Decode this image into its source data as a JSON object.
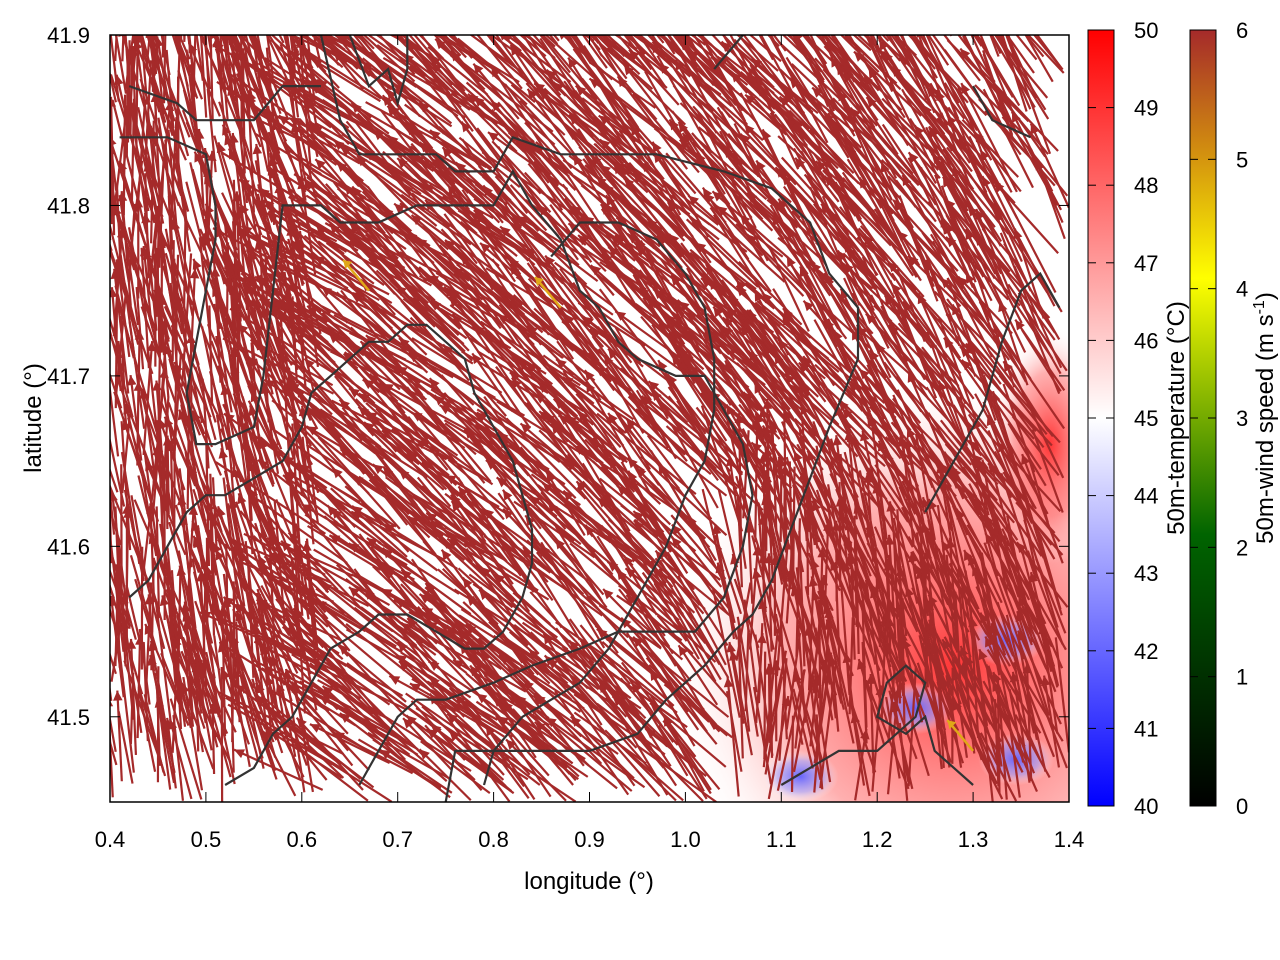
{
  "chart_data": {
    "type": "heatmap",
    "xlabel": "longitude (°)",
    "ylabel": "latitude (°)",
    "xlim": [
      0.4,
      1.4
    ],
    "ylim": [
      41.45,
      41.9
    ],
    "x_ticks": [
      "0.4",
      "0.5",
      "0.6",
      "0.7",
      "0.8",
      "0.9",
      "1.0",
      "1.1",
      "1.2",
      "1.3",
      "1.4"
    ],
    "x_tick_values": [
      0.4,
      0.5,
      0.6,
      0.7,
      0.8,
      0.9,
      1.0,
      1.1,
      1.2,
      1.3,
      1.4
    ],
    "y_ticks": [
      "41.5",
      "41.6",
      "41.7",
      "41.8",
      "41.9"
    ],
    "y_tick_values": [
      41.5,
      41.6,
      41.7,
      41.8,
      41.9
    ],
    "grid": false,
    "background_field": {
      "name": "50m-temperature",
      "colorbar_label": "50m-temperature (°C)",
      "range": [
        40,
        50
      ],
      "ticks": [
        "40",
        "41",
        "42",
        "43",
        "44",
        "45",
        "46",
        "47",
        "48",
        "49",
        "50"
      ],
      "colormap": [
        "#0000ff",
        "#ffffff",
        "#ff0000"
      ],
      "dominant_value": 45,
      "warm_region_lon": [
        1.0,
        1.4
      ],
      "warm_region_lat": [
        41.45,
        41.65
      ],
      "warm_values": [
        47,
        50
      ],
      "cool_patches": [
        {
          "lon": 1.24,
          "lat": 41.505,
          "value": 42.5
        },
        {
          "lon": 1.12,
          "lat": 41.465,
          "value": 43
        },
        {
          "lon": 1.345,
          "lat": 41.475,
          "value": 42
        },
        {
          "lon": 1.335,
          "lat": 41.545,
          "value": 43.5
        }
      ]
    },
    "vector_field": {
      "name": "50m-wind speed",
      "colorbar_label": "50m-wind speed (m s-1)",
      "range": [
        0,
        6
      ],
      "ticks": [
        "0",
        "1",
        "2",
        "3",
        "4",
        "5",
        "6"
      ],
      "colormap": [
        "#000000",
        "#006400",
        "#ffff00",
        "#a52a2a"
      ],
      "dominant_color": "#a52a2a",
      "dominant_speed": 6,
      "prevailing_direction": "northwest",
      "low_speed_arrows": [
        {
          "lon": 0.67,
          "lat": 41.75,
          "speed": 4.6
        },
        {
          "lon": 0.87,
          "lat": 41.74,
          "speed": 4.8
        },
        {
          "lon": 1.3,
          "lat": 41.48,
          "speed": 4.6
        }
      ]
    },
    "contours": {
      "color": "#333333",
      "lines": [
        [
          [
            0.42,
            41.87
          ],
          [
            0.47,
            41.86
          ],
          [
            0.49,
            41.85
          ],
          [
            0.53,
            41.85
          ],
          [
            0.55,
            41.85
          ],
          [
            0.58,
            41.87
          ],
          [
            0.62,
            41.87
          ]
        ],
        [
          [
            0.62,
            41.9
          ],
          [
            0.64,
            41.85
          ],
          [
            0.66,
            41.83
          ],
          [
            0.7,
            41.83
          ],
          [
            0.74,
            41.83
          ],
          [
            0.76,
            41.82
          ],
          [
            0.8,
            41.82
          ],
          [
            0.82,
            41.84
          ],
          [
            0.87,
            41.83
          ],
          [
            0.93,
            41.83
          ],
          [
            0.97,
            41.83
          ],
          [
            1.04,
            41.82
          ],
          [
            1.09,
            41.81
          ],
          [
            1.13,
            41.79
          ],
          [
            1.15,
            41.76
          ],
          [
            1.18,
            41.74
          ],
          [
            1.18,
            41.71
          ],
          [
            1.15,
            41.67
          ],
          [
            1.13,
            41.64
          ],
          [
            1.11,
            41.61
          ],
          [
            1.09,
            41.58
          ],
          [
            1.07,
            41.56
          ],
          [
            1.05,
            41.55
          ],
          [
            1.02,
            41.53
          ],
          [
            0.98,
            41.51
          ],
          [
            0.95,
            41.49
          ],
          [
            0.9,
            41.48
          ],
          [
            0.85,
            41.48
          ],
          [
            0.8,
            41.48
          ],
          [
            0.76,
            41.48
          ],
          [
            0.75,
            41.45
          ]
        ],
        [
          [
            0.65,
            41.9
          ],
          [
            0.67,
            41.87
          ],
          [
            0.69,
            41.88
          ],
          [
            0.7,
            41.86
          ],
          [
            0.71,
            41.88
          ],
          [
            0.71,
            41.9
          ]
        ],
        [
          [
            0.41,
            41.84
          ],
          [
            0.46,
            41.84
          ],
          [
            0.5,
            41.83
          ],
          [
            0.51,
            41.8
          ],
          [
            0.51,
            41.78
          ],
          [
            0.5,
            41.75
          ],
          [
            0.49,
            41.72
          ],
          [
            0.48,
            41.69
          ],
          [
            0.49,
            41.66
          ],
          [
            0.51,
            41.66
          ],
          [
            0.55,
            41.67
          ],
          [
            0.56,
            41.7
          ],
          [
            0.57,
            41.75
          ],
          [
            0.58,
            41.8
          ],
          [
            0.6,
            41.8
          ],
          [
            0.62,
            41.8
          ],
          [
            0.64,
            41.79
          ],
          [
            0.68,
            41.79
          ],
          [
            0.72,
            41.8
          ],
          [
            0.76,
            41.8
          ],
          [
            0.8,
            41.8
          ],
          [
            0.82,
            41.82
          ],
          [
            0.84,
            41.8
          ],
          [
            0.87,
            41.78
          ],
          [
            0.89,
            41.75
          ],
          [
            0.91,
            41.74
          ],
          [
            0.93,
            41.72
          ],
          [
            0.95,
            41.71
          ],
          [
            0.99,
            41.7
          ],
          [
            1.02,
            41.7
          ],
          [
            1.04,
            41.68
          ],
          [
            1.06,
            41.66
          ],
          [
            1.07,
            41.63
          ],
          [
            1.06,
            41.6
          ],
          [
            1.04,
            41.57
          ],
          [
            1.01,
            41.55
          ],
          [
            0.97,
            41.55
          ],
          [
            0.93,
            41.55
          ],
          [
            0.89,
            41.54
          ],
          [
            0.84,
            41.53
          ],
          [
            0.8,
            41.52
          ],
          [
            0.75,
            41.51
          ],
          [
            0.72,
            41.51
          ],
          [
            0.7,
            41.5
          ],
          [
            0.68,
            41.48
          ],
          [
            0.66,
            41.46
          ]
        ],
        [
          [
            0.42,
            41.57
          ],
          [
            0.44,
            41.58
          ],
          [
            0.46,
            41.6
          ],
          [
            0.48,
            41.62
          ],
          [
            0.5,
            41.63
          ],
          [
            0.52,
            41.63
          ],
          [
            0.55,
            41.64
          ],
          [
            0.58,
            41.65
          ],
          [
            0.6,
            41.67
          ],
          [
            0.61,
            41.69
          ],
          [
            0.63,
            41.7
          ],
          [
            0.65,
            41.71
          ],
          [
            0.67,
            41.72
          ],
          [
            0.69,
            41.72
          ],
          [
            0.71,
            41.73
          ],
          [
            0.73,
            41.73
          ],
          [
            0.75,
            41.72
          ],
          [
            0.77,
            41.71
          ],
          [
            0.78,
            41.69
          ],
          [
            0.8,
            41.67
          ],
          [
            0.82,
            41.65
          ],
          [
            0.83,
            41.63
          ],
          [
            0.84,
            41.61
          ],
          [
            0.84,
            41.59
          ],
          [
            0.83,
            41.57
          ],
          [
            0.81,
            41.55
          ],
          [
            0.79,
            41.54
          ],
          [
            0.77,
            41.54
          ],
          [
            0.74,
            41.55
          ],
          [
            0.71,
            41.56
          ],
          [
            0.68,
            41.56
          ],
          [
            0.66,
            41.55
          ],
          [
            0.63,
            41.54
          ],
          [
            0.61,
            41.52
          ],
          [
            0.59,
            41.5
          ],
          [
            0.57,
            41.49
          ],
          [
            0.55,
            41.47
          ],
          [
            0.52,
            41.46
          ]
        ],
        [
          [
            0.79,
            41.46
          ],
          [
            0.8,
            41.48
          ],
          [
            0.83,
            41.5
          ],
          [
            0.86,
            41.51
          ],
          [
            0.89,
            41.52
          ],
          [
            0.92,
            41.54
          ],
          [
            0.95,
            41.57
          ],
          [
            0.98,
            41.6
          ],
          [
            1.0,
            41.63
          ],
          [
            1.02,
            41.65
          ],
          [
            1.03,
            41.68
          ],
          [
            1.03,
            41.71
          ],
          [
            1.02,
            41.74
          ],
          [
            1.0,
            41.76
          ],
          [
            0.97,
            41.78
          ],
          [
            0.93,
            41.79
          ],
          [
            0.89,
            41.79
          ],
          [
            0.86,
            41.77
          ]
        ],
        [
          [
            1.1,
            41.46
          ],
          [
            1.13,
            41.47
          ],
          [
            1.16,
            41.48
          ],
          [
            1.2,
            41.48
          ],
          [
            1.24,
            41.5
          ],
          [
            1.25,
            41.52
          ],
          [
            1.23,
            41.53
          ],
          [
            1.21,
            41.52
          ],
          [
            1.2,
            41.5
          ],
          [
            1.23,
            41.49
          ],
          [
            1.25,
            41.5
          ],
          [
            1.26,
            41.48
          ],
          [
            1.28,
            41.47
          ],
          [
            1.3,
            41.46
          ]
        ],
        [
          [
            1.25,
            41.62
          ],
          [
            1.27,
            41.64
          ],
          [
            1.29,
            41.66
          ],
          [
            1.31,
            41.68
          ],
          [
            1.33,
            41.72
          ],
          [
            1.35,
            41.75
          ],
          [
            1.37,
            41.76
          ],
          [
            1.39,
            41.74
          ]
        ],
        [
          [
            1.03,
            41.88
          ],
          [
            1.06,
            41.9
          ]
        ],
        [
          [
            1.3,
            41.87
          ],
          [
            1.32,
            41.85
          ],
          [
            1.36,
            41.84
          ]
        ]
      ]
    }
  }
}
